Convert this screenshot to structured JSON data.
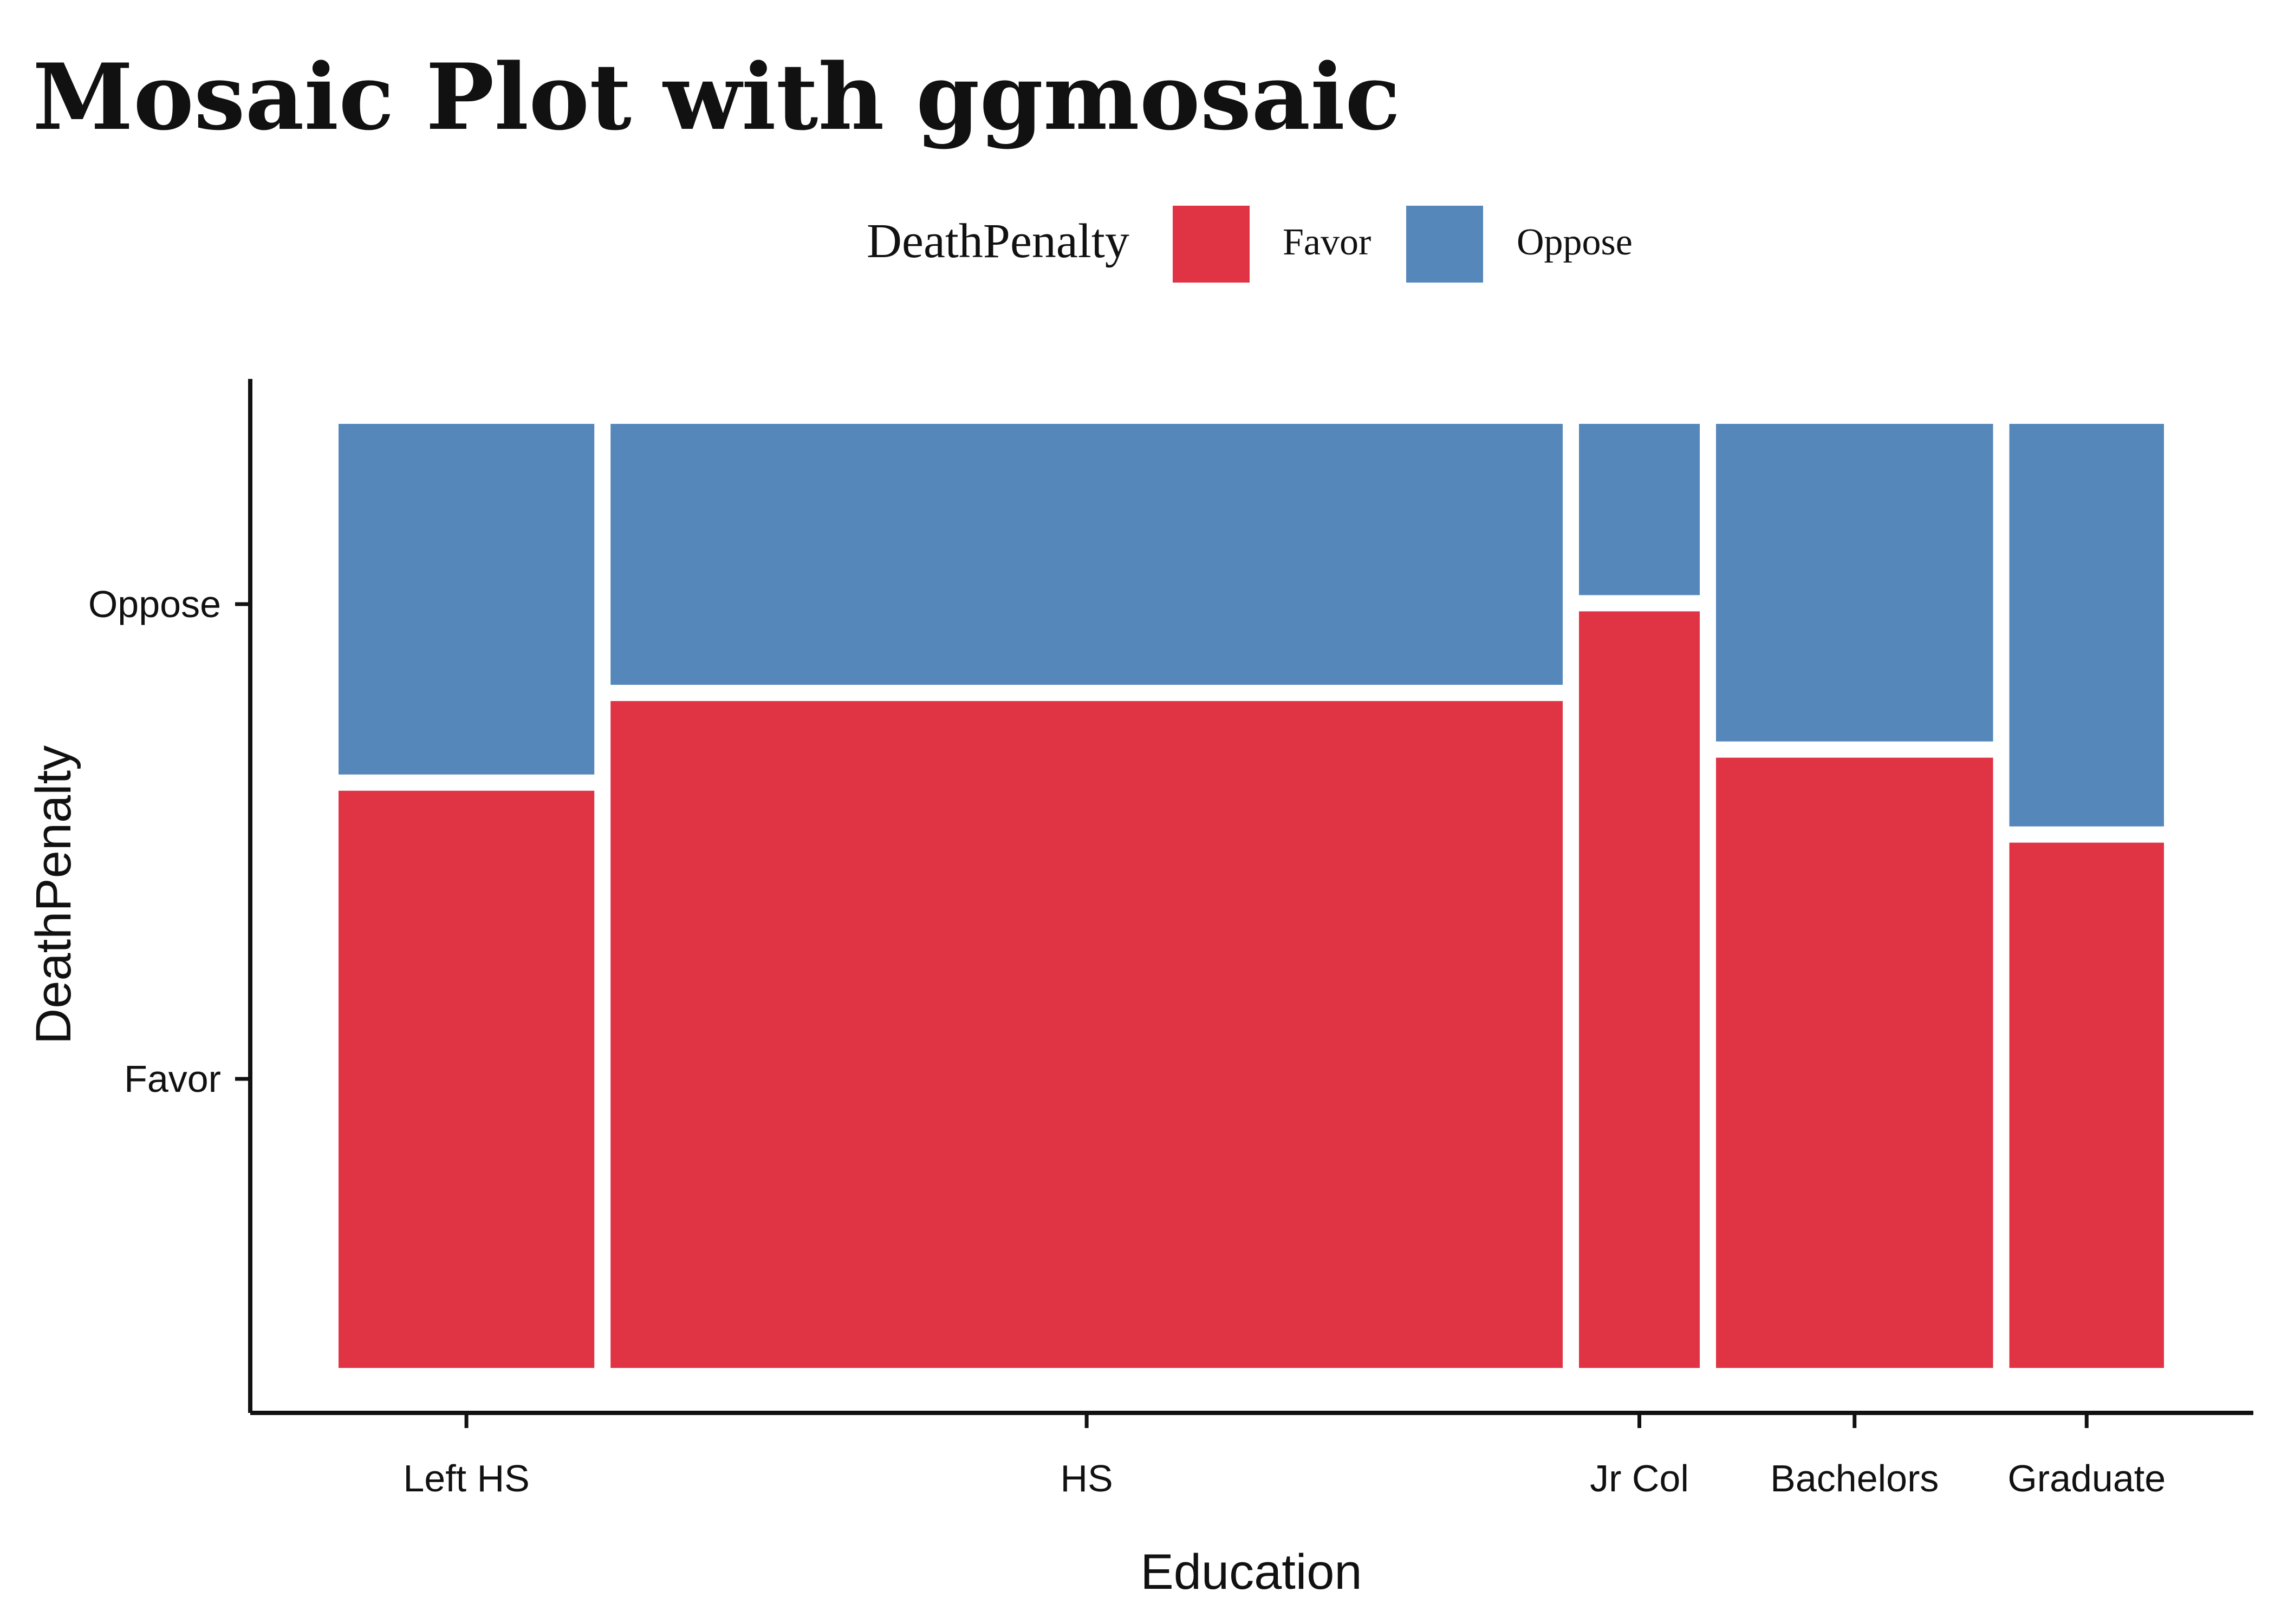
{
  "colors": {
    "favor": "#E03344",
    "oppose": "#5687BA",
    "axis": "#111111",
    "background": "#ffffff"
  },
  "chart_data": {
    "type": "mosaic",
    "title": "Mosaic Plot with ggmosaic",
    "xlabel": "Education",
    "ylabel": "DeathPenalty",
    "legend": {
      "title": "DeathPenalty",
      "position": "top",
      "entries": [
        {
          "label": "Favor",
          "color": "#E03344"
        },
        {
          "label": "Oppose",
          "color": "#5687BA"
        }
      ]
    },
    "y_tick_labels": [
      "Favor",
      "Oppose"
    ],
    "categories": [
      "Left HS",
      "HS",
      "Jr Col",
      "Bachelors",
      "Graduate"
    ],
    "column_share": [
      0.1406,
      0.5234,
      0.0664,
      0.1523,
      0.085
    ],
    "series": [
      {
        "name": "Favor",
        "values": [
          0.62,
          0.715,
          0.81,
          0.655,
          0.565
        ]
      },
      {
        "name": "Oppose",
        "values": [
          0.38,
          0.285,
          0.19,
          0.345,
          0.435
        ]
      }
    ],
    "grid": false
  }
}
